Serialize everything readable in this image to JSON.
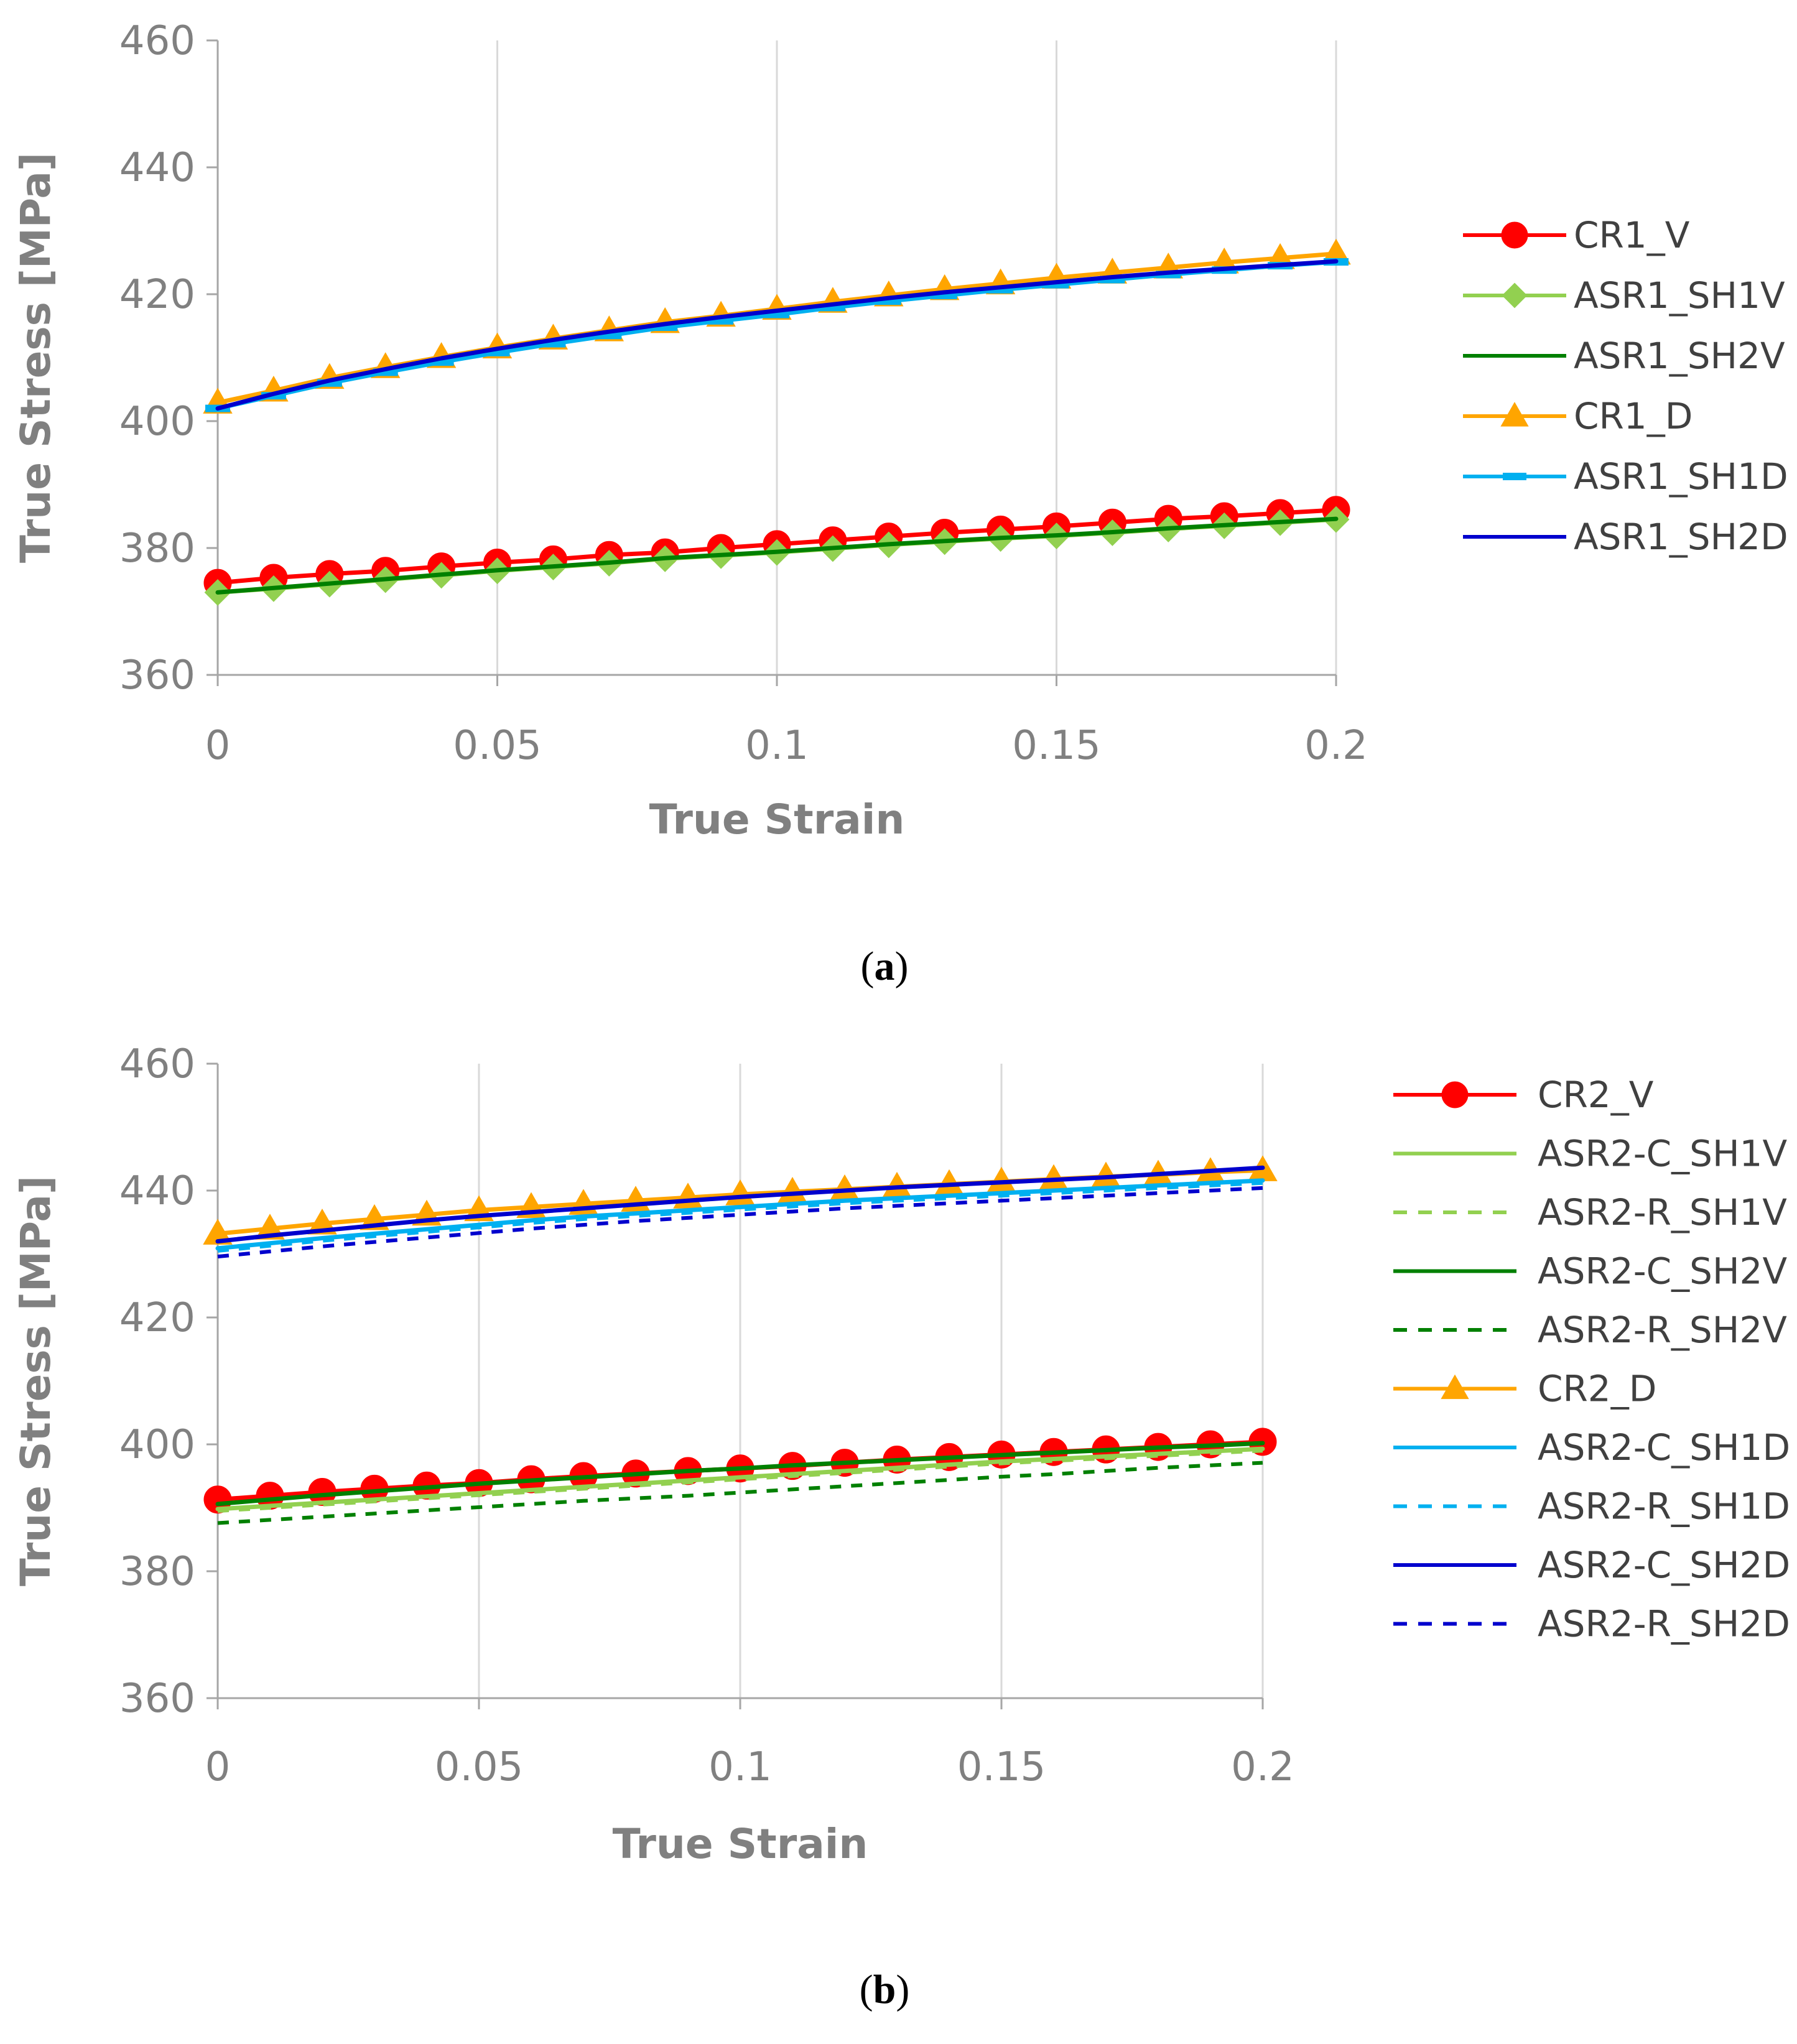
{
  "chart_data": [
    {
      "type": "line",
      "panel_label": "(a)",
      "panel_letter": "a",
      "title": "",
      "xlabel": "True Strain",
      "ylabel": "True Stress [MPa]",
      "xlim": [
        0,
        0.2
      ],
      "ylim": [
        360,
        460
      ],
      "xticks": [
        0,
        0.05,
        0.1,
        0.15,
        0.2
      ],
      "xtick_labels": [
        "0",
        "0.05",
        "0.1",
        "0.15",
        "0.2"
      ],
      "yticks": [
        360,
        380,
        400,
        420,
        440,
        460
      ],
      "ytick_labels": [
        "360",
        "380",
        "400",
        "420",
        "440",
        "460"
      ],
      "grid": "vertical",
      "legend_position": "right",
      "x": [
        0,
        0.01,
        0.02,
        0.03,
        0.04,
        0.05,
        0.06,
        0.07,
        0.08,
        0.09,
        0.1,
        0.11,
        0.12,
        0.13,
        0.14,
        0.15,
        0.16,
        0.17,
        0.18,
        0.19,
        0.2
      ],
      "series": [
        {
          "name": "CR1_V",
          "color": "#ff0000",
          "style": "solid",
          "marker": "circle",
          "values": [
            374.5,
            375.3,
            375.9,
            376.4,
            377.1,
            377.7,
            378.2,
            378.9,
            379.3,
            380.0,
            380.6,
            381.2,
            381.8,
            382.4,
            382.9,
            383.4,
            384.0,
            384.6,
            385.0,
            385.5,
            386.0
          ]
        },
        {
          "name": "ASR1_SH1V",
          "color": "#92d050",
          "style": "solid",
          "marker": "diamond",
          "values": [
            373.0,
            373.6,
            374.3,
            375.0,
            375.7,
            376.4,
            377.0,
            377.6,
            378.3,
            378.8,
            379.3,
            379.9,
            380.5,
            381.0,
            381.5,
            381.9,
            382.4,
            383.0,
            383.5,
            384.0,
            384.5
          ]
        },
        {
          "name": "ASR1_SH2V",
          "color": "#008000",
          "style": "solid",
          "marker": "none",
          "values": [
            373.0,
            373.7,
            374.4,
            375.1,
            375.8,
            376.5,
            377.1,
            377.7,
            378.4,
            378.9,
            379.4,
            380.0,
            380.6,
            381.1,
            381.6,
            382.0,
            382.5,
            383.1,
            383.6,
            384.1,
            384.6
          ]
        },
        {
          "name": "CR1_D",
          "color": "#ffa500",
          "style": "solid",
          "marker": "triangle",
          "values": [
            402.9,
            404.8,
            406.8,
            408.5,
            410.1,
            411.6,
            413.0,
            414.3,
            415.6,
            416.6,
            417.7,
            418.8,
            419.8,
            420.8,
            421.7,
            422.6,
            423.4,
            424.2,
            425.0,
            425.7,
            426.4
          ]
        },
        {
          "name": "ASR1_SH1D",
          "color": "#00b0f0",
          "style": "solid",
          "marker": "dash",
          "values": [
            402.0,
            404.0,
            406.0,
            407.7,
            409.3,
            410.8,
            412.2,
            413.5,
            414.8,
            415.8,
            416.8,
            417.9,
            418.9,
            419.8,
            420.7,
            421.5,
            422.3,
            423.1,
            423.8,
            424.5,
            425.1
          ]
        },
        {
          "name": "ASR1_SH2D",
          "color": "#0000cd",
          "style": "solid",
          "marker": "none",
          "values": [
            402.0,
            404.3,
            406.4,
            408.2,
            409.9,
            411.4,
            412.8,
            414.1,
            415.3,
            416.4,
            417.4,
            418.4,
            419.4,
            420.3,
            421.1,
            421.9,
            422.7,
            423.4,
            424.0,
            424.6,
            425.2
          ]
        }
      ]
    },
    {
      "type": "line",
      "panel_label": "(b)",
      "panel_letter": "b",
      "title": "",
      "xlabel": "True Strain",
      "ylabel": "True Stress [MPa]",
      "xlim": [
        0,
        0.2
      ],
      "ylim": [
        360,
        460
      ],
      "xticks": [
        0,
        0.05,
        0.1,
        0.15,
        0.2
      ],
      "xtick_labels": [
        "0",
        "0.05",
        "0.1",
        "0.15",
        "0.2"
      ],
      "yticks": [
        360,
        380,
        400,
        420,
        440,
        460
      ],
      "ytick_labels": [
        "360",
        "380",
        "400",
        "420",
        "440",
        "460"
      ],
      "grid": "vertical",
      "legend_position": "right",
      "x": [
        0,
        0.01,
        0.02,
        0.03,
        0.04,
        0.05,
        0.06,
        0.07,
        0.08,
        0.09,
        0.1,
        0.11,
        0.12,
        0.13,
        0.14,
        0.15,
        0.16,
        0.17,
        0.18,
        0.19,
        0.2
      ],
      "series": [
        {
          "name": "CR2_V",
          "color": "#ff0000",
          "style": "solid",
          "marker": "circle",
          "values": [
            391.3,
            391.9,
            392.5,
            393.0,
            393.5,
            393.9,
            394.5,
            395.0,
            395.4,
            395.8,
            396.2,
            396.6,
            397.1,
            397.6,
            398.0,
            398.4,
            398.8,
            399.2,
            399.6,
            400.0,
            400.4
          ]
        },
        {
          "name": "ASR2-C_SH1V",
          "color": "#92d050",
          "style": "solid",
          "marker": "none",
          "values": [
            389.8,
            390.3,
            390.8,
            391.3,
            391.8,
            392.3,
            392.8,
            393.3,
            393.8,
            394.3,
            394.8,
            395.3,
            395.8,
            396.3,
            396.8,
            397.3,
            397.7,
            398.1,
            398.5,
            398.9,
            399.3
          ]
        },
        {
          "name": "ASR2-R_SH1V",
          "color": "#92d050",
          "style": "dashed",
          "marker": "none",
          "values": [
            389.5,
            390.0,
            390.5,
            391.0,
            391.5,
            392.0,
            392.5,
            393.0,
            393.5,
            394.0,
            394.5,
            395.0,
            395.5,
            396.0,
            396.5,
            397.0,
            397.4,
            397.8,
            398.2,
            398.6,
            399.0
          ]
        },
        {
          "name": "ASR2-C_SH2V",
          "color": "#008000",
          "style": "solid",
          "marker": "none",
          "values": [
            390.6,
            391.3,
            392.0,
            392.6,
            393.2,
            393.8,
            394.3,
            394.8,
            395.3,
            395.8,
            396.2,
            396.7,
            397.1,
            397.5,
            397.9,
            398.3,
            398.7,
            399.1,
            399.5,
            399.8,
            400.2
          ]
        },
        {
          "name": "ASR2-R_SH2V",
          "color": "#008000",
          "style": "dashed",
          "marker": "none",
          "values": [
            387.6,
            388.1,
            388.6,
            389.1,
            389.6,
            390.1,
            390.6,
            391.1,
            391.5,
            391.9,
            392.4,
            392.9,
            393.4,
            393.9,
            394.4,
            394.9,
            395.3,
            395.8,
            396.3,
            396.7,
            397.1
          ]
        },
        {
          "name": "CR2_D",
          "color": "#ffa500",
          "style": "solid",
          "marker": "triangle",
          "values": [
            433.2,
            434.0,
            434.8,
            435.5,
            436.2,
            436.9,
            437.4,
            437.9,
            438.4,
            438.9,
            439.4,
            439.8,
            440.2,
            440.6,
            441.0,
            441.4,
            441.8,
            442.2,
            442.5,
            442.9,
            443.2
          ]
        },
        {
          "name": "ASR2-C_SH1D",
          "color": "#00b0f0",
          "style": "solid",
          "marker": "none",
          "values": [
            430.9,
            431.7,
            432.5,
            433.2,
            433.9,
            434.6,
            435.3,
            435.9,
            436.4,
            436.9,
            437.4,
            437.9,
            438.4,
            438.8,
            439.2,
            439.6,
            440.0,
            440.4,
            440.8,
            441.2,
            441.6
          ]
        },
        {
          "name": "ASR2-R_SH1D",
          "color": "#00b0f0",
          "style": "dashed",
          "marker": "none",
          "values": [
            430.5,
            431.3,
            432.1,
            432.8,
            433.5,
            434.2,
            434.9,
            435.5,
            436.0,
            436.5,
            437.0,
            437.5,
            438.0,
            438.4,
            438.8,
            439.2,
            439.6,
            440.0,
            440.4,
            440.8,
            441.2
          ]
        },
        {
          "name": "ASR2-C_SH2D",
          "color": "#0000cd",
          "style": "solid",
          "marker": "none",
          "values": [
            432.0,
            432.9,
            433.7,
            434.5,
            435.3,
            436.0,
            436.6,
            437.2,
            437.8,
            438.4,
            439.0,
            439.5,
            440.0,
            440.5,
            440.9,
            441.3,
            441.7,
            442.1,
            442.6,
            443.1,
            443.6
          ]
        },
        {
          "name": "ASR2-R_SH2D",
          "color": "#0000cd",
          "style": "dashed",
          "marker": "none",
          "values": [
            429.6,
            430.4,
            431.2,
            431.9,
            432.6,
            433.3,
            434.0,
            434.6,
            435.2,
            435.7,
            436.2,
            436.7,
            437.2,
            437.6,
            438.0,
            438.4,
            438.8,
            439.2,
            439.6,
            440.0,
            440.4
          ]
        }
      ]
    }
  ]
}
